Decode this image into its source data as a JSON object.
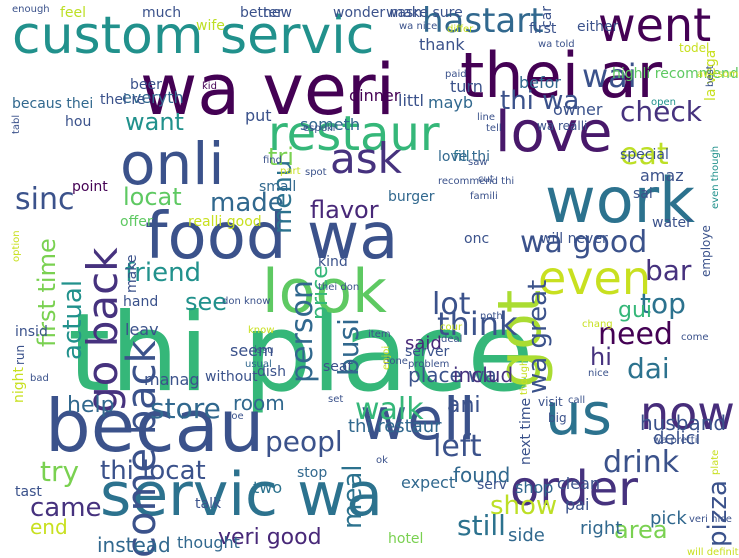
{
  "words": [
    {
      "text": "thi place",
      "color": "#35b779"
    },
    {
      "text": "wa veri",
      "color": "#440154"
    },
    {
      "text": "custom servic",
      "color": "#21918c"
    },
    {
      "text": "thei ar",
      "color": "#440154"
    },
    {
      "text": "servic wa",
      "color": "#2c728e"
    },
    {
      "text": "becau",
      "color": "#3b528b"
    },
    {
      "text": "food wa",
      "color": "#3b528b"
    },
    {
      "text": "work",
      "color": "#2c728e"
    },
    {
      "text": "onli",
      "color": "#3b528b"
    },
    {
      "text": "love",
      "color": "#48186a"
    },
    {
      "text": "look",
      "color": "#5ec962"
    },
    {
      "text": "well",
      "color": "#3b528b"
    },
    {
      "text": "us",
      "color": "#2c728e"
    },
    {
      "text": "went",
      "color": "#440154"
    },
    {
      "text": "got",
      "color": "#aadc32"
    },
    {
      "text": "order",
      "color": "#46327e"
    },
    {
      "text": "now",
      "color": "#472d7b"
    },
    {
      "text": "restaur",
      "color": "#35b779"
    },
    {
      "text": "go back",
      "color": "#46327e"
    },
    {
      "text": "come back",
      "color": "#3b528b"
    },
    {
      "text": "even",
      "color": "#c8e020"
    },
    {
      "text": "ask",
      "color": "#46327e"
    },
    {
      "text": "hastart",
      "color": "#31688e"
    },
    {
      "text": "wai",
      "color": "#3b528b"
    },
    {
      "text": "check",
      "color": "#46327e"
    },
    {
      "text": "eat",
      "color": "#bddf26"
    },
    {
      "text": "thi wa",
      "color": "#3b528b"
    },
    {
      "text": "menu",
      "color": "#2c728e"
    },
    {
      "text": "want",
      "color": "#21918c"
    },
    {
      "text": "sinc",
      "color": "#3b528b"
    },
    {
      "text": "locat",
      "color": "#5ec962"
    },
    {
      "text": "made",
      "color": "#31688e"
    },
    {
      "text": "tri",
      "color": "#7ad151"
    },
    {
      "text": "flavor",
      "color": "#482878"
    },
    {
      "text": "wa good",
      "color": "#3b528b"
    },
    {
      "text": "friend",
      "color": "#21918c"
    },
    {
      "text": "bar",
      "color": "#46327e"
    },
    {
      "text": "top",
      "color": "#2c728e"
    },
    {
      "text": "lot",
      "color": "#3b528b"
    },
    {
      "text": "see",
      "color": "#21918c"
    },
    {
      "text": "think",
      "color": "#3b528b"
    },
    {
      "text": "need",
      "color": "#440154"
    },
    {
      "text": "dai",
      "color": "#2c728e"
    },
    {
      "text": "hi",
      "color": "#46327e"
    },
    {
      "text": "price",
      "color": "#35b779"
    },
    {
      "text": "person",
      "color": "#31688e"
    },
    {
      "text": "busi",
      "color": "#31688e"
    },
    {
      "text": "first time",
      "color": "#7ad151"
    },
    {
      "text": "actual",
      "color": "#21918c"
    },
    {
      "text": "wa great",
      "color": "#3b528b"
    },
    {
      "text": "store",
      "color": "#31688e"
    },
    {
      "text": "help",
      "color": "#31688e"
    },
    {
      "text": "walk",
      "color": "#35b779"
    },
    {
      "text": "ani",
      "color": "#3b528b"
    },
    {
      "text": "peopl",
      "color": "#3b528b"
    },
    {
      "text": "left",
      "color": "#3b528b"
    },
    {
      "text": "drink",
      "color": "#3b528b"
    },
    {
      "text": "try",
      "color": "#7ad151"
    },
    {
      "text": "thi locat",
      "color": "#3b528b"
    },
    {
      "text": "show",
      "color": "#bddf26"
    },
    {
      "text": "came",
      "color": "#46327e"
    },
    {
      "text": "meal",
      "color": "#2c728e"
    },
    {
      "text": "still",
      "color": "#2c728e"
    },
    {
      "text": "pizza",
      "color": "#3b528b"
    },
    {
      "text": "area",
      "color": "#7ad151"
    },
    {
      "text": "end",
      "color": "#c8e020"
    },
    {
      "text": "veri good",
      "color": "#482878"
    },
    {
      "text": "instead",
      "color": "#31688e"
    },
    {
      "text": "husband",
      "color": "#3b528b"
    },
    {
      "text": "room",
      "color": "#31688e"
    },
    {
      "text": "thi restaur",
      "color": "#31688e"
    },
    {
      "text": "ani",
      "color": "#3b528b"
    },
    {
      "text": "gui",
      "color": "#35b779"
    },
    {
      "text": "said",
      "color": "#482878"
    },
    {
      "text": "place wa",
      "color": "#3b528b"
    },
    {
      "text": "includ",
      "color": "#46327e"
    },
    {
      "text": "found",
      "color": "#31688e"
    },
    {
      "text": "right",
      "color": "#31688e"
    },
    {
      "text": "side",
      "color": "#31688e"
    },
    {
      "text": "pick",
      "color": "#31688e"
    },
    {
      "text": "delici",
      "color": "#3b528b"
    },
    {
      "text": "shop",
      "color": "#31688e"
    },
    {
      "text": "clean",
      "color": "#3b528b"
    },
    {
      "text": "pai",
      "color": "#3b528b"
    },
    {
      "text": "serv",
      "color": "#3b528b"
    },
    {
      "text": "expect",
      "color": "#31688e"
    },
    {
      "text": "stop",
      "color": "#31688e"
    },
    {
      "text": "two",
      "color": "#2c728e"
    },
    {
      "text": "tast",
      "color": "#3b528b"
    },
    {
      "text": "talk",
      "color": "#3b528b"
    },
    {
      "text": "thought",
      "color": "#31688e"
    },
    {
      "text": "hotel",
      "color": "#7ad151"
    },
    {
      "text": "dish",
      "color": "#3b528b"
    },
    {
      "text": "seem",
      "color": "#3b528b"
    },
    {
      "text": "manag",
      "color": "#3b528b"
    },
    {
      "text": "leav",
      "color": "#3b528b"
    },
    {
      "text": "hand",
      "color": "#3b528b"
    },
    {
      "text": "insid",
      "color": "#3b528b"
    },
    {
      "text": "kind",
      "color": "#3b528b"
    },
    {
      "text": "make",
      "color": "#3b528b"
    },
    {
      "text": "point",
      "color": "#440154"
    },
    {
      "text": "offer",
      "color": "#5ec962"
    },
    {
      "text": "small",
      "color": "#31688e"
    },
    {
      "text": "burger",
      "color": "#31688e"
    },
    {
      "text": "water",
      "color": "#3b528b"
    },
    {
      "text": "sai",
      "color": "#3b528b"
    },
    {
      "text": "amaz",
      "color": "#3b528b"
    },
    {
      "text": "special",
      "color": "#3b528b"
    },
    {
      "text": "will never",
      "color": "#3b528b"
    },
    {
      "text": "onc",
      "color": "#3b528b"
    },
    {
      "text": "employe",
      "color": "#3b528b"
    },
    {
      "text": "fill",
      "color": "#2c728e"
    },
    {
      "text": "love thi",
      "color": "#31688e"
    },
    {
      "text": "someth",
      "color": "#31688e"
    },
    {
      "text": "put",
      "color": "#3b528b"
    },
    {
      "text": "dinner",
      "color": "#440154"
    },
    {
      "text": "everyth",
      "color": "#31688e"
    },
    {
      "text": "littl",
      "color": "#3b528b"
    },
    {
      "text": "mayb",
      "color": "#31688e"
    },
    {
      "text": "turn",
      "color": "#3b528b"
    },
    {
      "text": "thank",
      "color": "#3b528b"
    },
    {
      "text": "befor",
      "color": "#31688e"
    },
    {
      "text": "owner",
      "color": "#3b528b"
    },
    {
      "text": "highli recommend",
      "color": "#5ec962"
    },
    {
      "text": "wa realli",
      "color": "#3b528b"
    },
    {
      "text": "first",
      "color": "#3b528b"
    },
    {
      "text": "wasn",
      "color": "#3b528b"
    },
    {
      "text": "car",
      "color": "#3b528b"
    },
    {
      "text": "either",
      "color": "#3b528b"
    },
    {
      "text": "much",
      "color": "#3b528b"
    },
    {
      "text": "new",
      "color": "#3b528b"
    },
    {
      "text": "wife",
      "color": "#bddf26"
    },
    {
      "text": "better",
      "color": "#3b528b"
    },
    {
      "text": "feel",
      "color": "#bddf26"
    },
    {
      "text": "wonder make sure",
      "color": "#3b528b"
    },
    {
      "text": "wa nice",
      "color": "#3b528b"
    },
    {
      "text": "enough",
      "color": "#3b528b"
    },
    {
      "text": "differ",
      "color": "#c8e020"
    },
    {
      "text": "wa told",
      "color": "#3b528b"
    },
    {
      "text": "becaus thei",
      "color": "#31688e"
    },
    {
      "text": "tabl",
      "color": "#3b528b"
    },
    {
      "text": "hou",
      "color": "#3b528b"
    },
    {
      "text": "beer",
      "color": "#3b528b"
    },
    {
      "text": "thei re",
      "color": "#3b528b"
    },
    {
      "text": "kid",
      "color": "#440154"
    },
    {
      "text": "la vega",
      "color": "#c8e020"
    },
    {
      "text": "open",
      "color": "#21918c"
    },
    {
      "text": "paid",
      "color": "#3b528b"
    },
    {
      "text": "line",
      "color": "#3b528b"
    },
    {
      "text": "tell",
      "color": "#3b528b"
    },
    {
      "text": "espeki",
      "color": "#3b528b"
    },
    {
      "text": "spot",
      "color": "#3b528b"
    },
    {
      "text": "find",
      "color": "#3b528b"
    },
    {
      "text": "part",
      "color": "#c8e020"
    },
    {
      "text": "saw",
      "color": "#3b528b"
    },
    {
      "text": "even though",
      "color": "#21918c"
    },
    {
      "text": "cut",
      "color": "#3b528b"
    },
    {
      "text": "famili",
      "color": "#3b528b"
    },
    {
      "text": "recommend thi",
      "color": "#3b528b"
    },
    {
      "text": "realli good",
      "color": "#c8e020"
    },
    {
      "text": "option",
      "color": "#c8e020"
    },
    {
      "text": "don know",
      "color": "#3b528b"
    },
    {
      "text": "thei don",
      "color": "#3b528b"
    },
    {
      "text": "item",
      "color": "#3b528b"
    },
    {
      "text": "noth",
      "color": "#3b528b"
    },
    {
      "text": "know",
      "color": "#c8e020"
    },
    {
      "text": "issu",
      "color": "#3b528b"
    },
    {
      "text": "usual",
      "color": "#31688e"
    },
    {
      "text": "seat",
      "color": "#3b528b"
    },
    {
      "text": "cour",
      "color": "#c8e020"
    },
    {
      "text": "chang",
      "color": "#c8e020"
    },
    {
      "text": "deal",
      "color": "#3b528b"
    },
    {
      "text": "come",
      "color": "#3b528b"
    },
    {
      "text": "night",
      "color": "#c8e020"
    },
    {
      "text": "bad",
      "color": "#3b528b"
    },
    {
      "text": "without",
      "color": "#3b528b"
    },
    {
      "text": "doe",
      "color": "#3b528b"
    },
    {
      "text": "set",
      "color": "#3b528b"
    },
    {
      "text": "done",
      "color": "#3b528b"
    },
    {
      "text": "problem",
      "color": "#3b528b"
    },
    {
      "text": "though",
      "color": "#c8e020"
    },
    {
      "text": "nice",
      "color": "#3b528b"
    },
    {
      "text": "visit",
      "color": "#3b528b"
    },
    {
      "text": "call",
      "color": "#3b528b"
    },
    {
      "text": "next time",
      "color": "#3b528b"
    },
    {
      "text": "wa pretti",
      "color": "#3b528b"
    },
    {
      "text": "big",
      "color": "#3b528b"
    },
    {
      "text": "plate",
      "color": "#c8e020"
    },
    {
      "text": "ok",
      "color": "#3b528b"
    },
    {
      "text": "veri nice",
      "color": "#3b528b"
    },
    {
      "text": "will definit",
      "color": "#c8e020"
    },
    {
      "text": "run",
      "color": "#3b528b"
    },
    {
      "text": "todel",
      "color": "#c8e020"
    },
    {
      "text": "awesom",
      "color": "#c8e020"
    },
    {
      "text": "best",
      "color": "#3b528b"
    },
    {
      "text": "server",
      "color": "#3b528b"
    },
    {
      "text": "enjoi",
      "color": "#c8e020"
    }
  ]
}
